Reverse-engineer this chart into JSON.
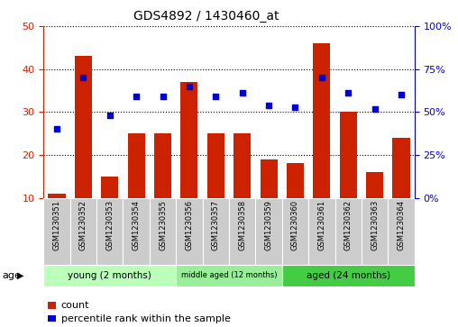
{
  "title": "GDS4892 / 1430460_at",
  "samples": [
    "GSM1230351",
    "GSM1230352",
    "GSM1230353",
    "GSM1230354",
    "GSM1230355",
    "GSM1230356",
    "GSM1230357",
    "GSM1230358",
    "GSM1230359",
    "GSM1230360",
    "GSM1230361",
    "GSM1230362",
    "GSM1230363",
    "GSM1230364"
  ],
  "counts": [
    11,
    43,
    15,
    25,
    25,
    37,
    25,
    25,
    19,
    18,
    46,
    30,
    16,
    24
  ],
  "percentiles": [
    40,
    70,
    48,
    59,
    59,
    65,
    59,
    61,
    54,
    53,
    70,
    61,
    52,
    60
  ],
  "bar_color": "#cc2200",
  "dot_color": "#0000cc",
  "ylim_left": [
    10,
    50
  ],
  "ylim_right": [
    0,
    100
  ],
  "yticks_left": [
    10,
    20,
    30,
    40,
    50
  ],
  "ytick_labels_left": [
    "10",
    "20",
    "30",
    "40",
    "50"
  ],
  "yticks_right": [
    0,
    25,
    50,
    75,
    100
  ],
  "ytick_labels_right": [
    "0%",
    "25%",
    "50%",
    "75%",
    "100%"
  ],
  "groups": [
    {
      "label": "young (2 months)",
      "start": 0,
      "end": 5,
      "color": "#bbffbb"
    },
    {
      "label": "middle aged (12 months)",
      "start": 5,
      "end": 9,
      "color": "#99ee99"
    },
    {
      "label": "aged (24 months)",
      "start": 9,
      "end": 14,
      "color": "#44cc44"
    }
  ],
  "legend_count_label": "count",
  "legend_pct_label": "percentile rank within the sample",
  "age_label": "age",
  "bar_bottom": 10,
  "grid_color": "black",
  "grid_style": "dotted"
}
